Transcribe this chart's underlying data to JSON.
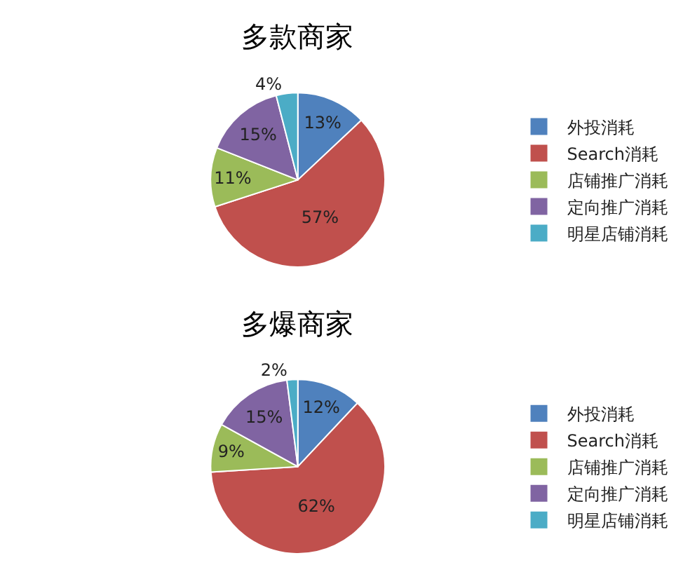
{
  "chart_data": [
    {
      "type": "pie",
      "title": "多款商家",
      "categories": [
        "外投消耗",
        "Search消耗",
        "店铺推广消耗",
        "定向推广消耗",
        "明星店铺消耗"
      ],
      "values": [
        13,
        57,
        11,
        15,
        4
      ],
      "value_labels": [
        "13%",
        "57%",
        "11%",
        "15%",
        "4%"
      ],
      "colors": [
        "#4f81bd",
        "#c0504d",
        "#9bbb59",
        "#8064a2",
        "#4bacc6"
      ],
      "legend": "right"
    },
    {
      "type": "pie",
      "title": "多爆商家",
      "categories": [
        "外投消耗",
        "Search消耗",
        "店铺推广消耗",
        "定向推广消耗",
        "明星店铺消耗"
      ],
      "values": [
        12,
        62,
        9,
        15,
        2
      ],
      "value_labels": [
        "12%",
        "62%",
        "9%",
        "15%",
        "2%"
      ],
      "colors": [
        "#4f81bd",
        "#c0504d",
        "#9bbb59",
        "#8064a2",
        "#4bacc6"
      ],
      "legend": "right"
    }
  ]
}
